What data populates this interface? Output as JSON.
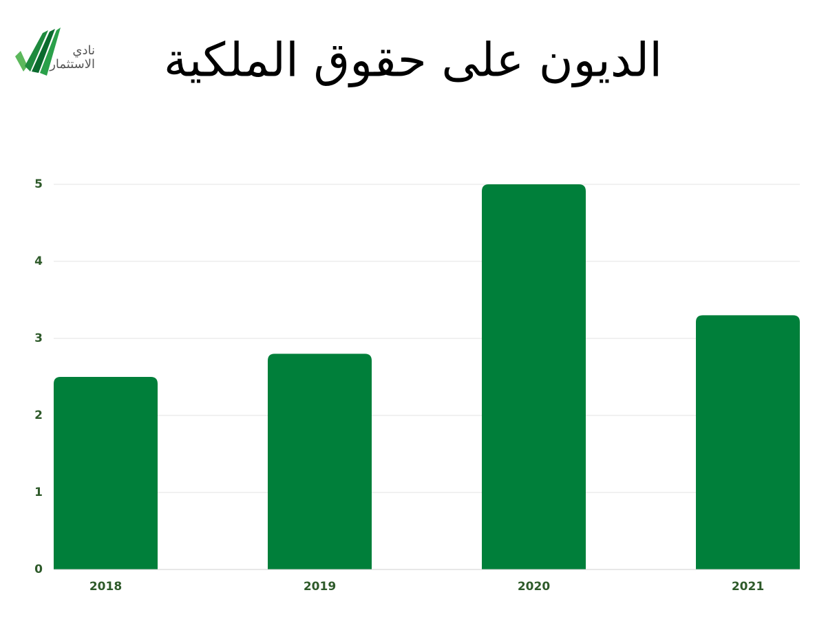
{
  "logo_text": [
    "نادي",
    "الاستثمار"
  ],
  "chart_data": {
    "type": "bar",
    "title": "الديون على حقوق الملكية",
    "categories": [
      "2018",
      "2019",
      "2020",
      "2021"
    ],
    "values": [
      2.5,
      2.8,
      5,
      3.3
    ],
    "color": "#007f3a",
    "ylim": [
      0,
      5
    ],
    "yticks": [
      0,
      1,
      2,
      3,
      4,
      5
    ],
    "grid": true
  }
}
